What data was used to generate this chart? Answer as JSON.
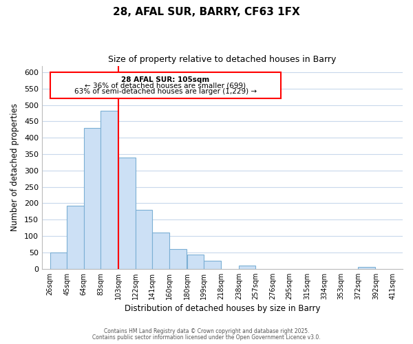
{
  "title": "28, AFAL SUR, BARRY, CF63 1FX",
  "subtitle": "Size of property relative to detached houses in Barry",
  "xlabel": "Distribution of detached houses by size in Barry",
  "ylabel": "Number of detached properties",
  "bar_left_edges": [
    26,
    45,
    64,
    83,
    103,
    122,
    141,
    160,
    180,
    199,
    218,
    238,
    257,
    276,
    295,
    315,
    334,
    353,
    372,
    392
  ],
  "bar_heights": [
    50,
    192,
    430,
    483,
    340,
    179,
    110,
    60,
    44,
    25,
    0,
    10,
    0,
    0,
    0,
    0,
    0,
    0,
    5,
    0
  ],
  "bar_color": "#cce0f5",
  "bar_edgecolor": "#7bafd4",
  "x_tick_labels": [
    "26sqm",
    "45sqm",
    "64sqm",
    "83sqm",
    "103sqm",
    "122sqm",
    "141sqm",
    "160sqm",
    "180sqm",
    "199sqm",
    "218sqm",
    "238sqm",
    "257sqm",
    "276sqm",
    "295sqm",
    "315sqm",
    "334sqm",
    "353sqm",
    "372sqm",
    "392sqm",
    "411sqm"
  ],
  "x_tick_positions": [
    26,
    45,
    64,
    83,
    103,
    122,
    141,
    160,
    180,
    199,
    218,
    238,
    257,
    276,
    295,
    315,
    334,
    353,
    372,
    392,
    411
  ],
  "yticks": [
    0,
    50,
    100,
    150,
    200,
    250,
    300,
    350,
    400,
    450,
    500,
    550,
    600
  ],
  "ylim": [
    0,
    620
  ],
  "xlim": [
    17,
    422
  ],
  "red_line_x": 103,
  "annotation_title": "28 AFAL SUR: 105sqm",
  "annotation_line1": "← 36% of detached houses are smaller (699)",
  "annotation_line2": "63% of semi-detached houses are larger (1,229) →",
  "grid_color": "#c8d8ec",
  "footer_line1": "Contains HM Land Registry data © Crown copyright and database right 2025.",
  "footer_line2": "Contains public sector information licensed under the Open Government Licence v3.0."
}
